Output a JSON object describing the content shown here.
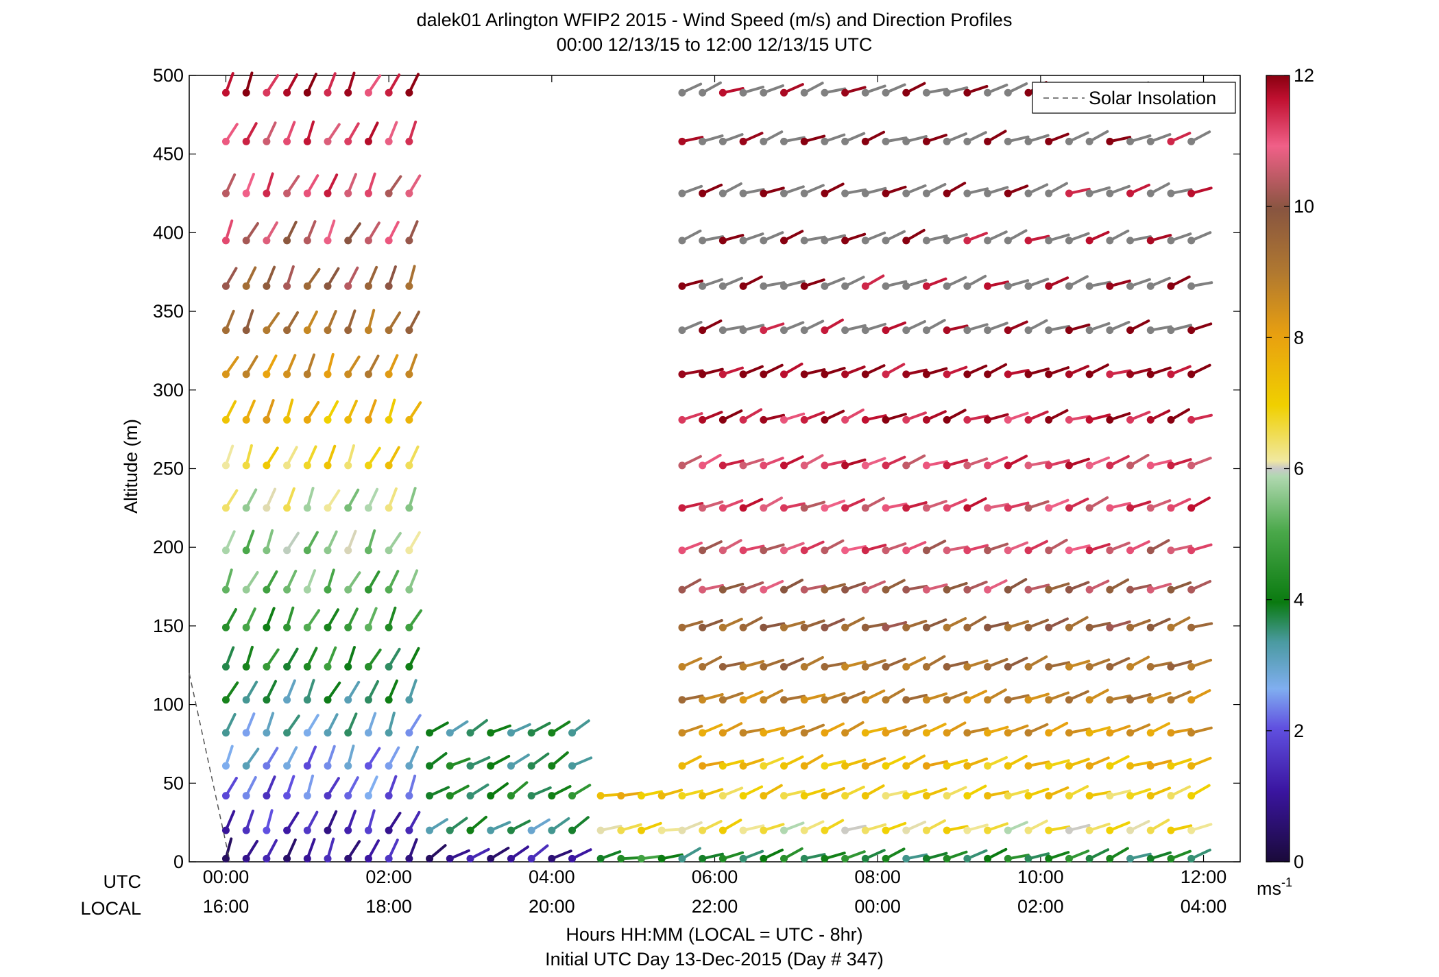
{
  "chart_data": {
    "type": "wind_barb_profile",
    "title": "dalek01 Arlington WFIP2 2015 - Wind Speed (m/s) and Direction Profiles",
    "subtitle": "00:00 12/13/15 to 12:00 12/13/15  UTC",
    "ylabel": "Altitude (m)",
    "ylim": [
      0,
      500
    ],
    "yticks": [
      0,
      50,
      100,
      150,
      200,
      250,
      300,
      350,
      400,
      450,
      500
    ],
    "xlim_hours": [
      -0.45,
      12.45
    ],
    "xticks_utc": [
      "00:00",
      "02:00",
      "04:00",
      "06:00",
      "08:00",
      "10:00",
      "12:00"
    ],
    "xticks_local": [
      "16:00",
      "18:00",
      "20:00",
      "22:00",
      "00:00",
      "02:00",
      "04:00"
    ],
    "xrow_labels": [
      "UTC",
      "LOCAL"
    ],
    "xlabel": "Hours HH:MM  (LOCAL = UTC - 8hr)",
    "xlabel2": "Initial UTC Day 13-Dec-2015 (Day # 347)",
    "legend": {
      "entries": [
        "Solar Insolation"
      ],
      "placement": "top-right"
    },
    "colorbar": {
      "min": 0,
      "max": 12,
      "ticks": [
        0,
        2,
        4,
        6,
        8,
        10,
        12
      ],
      "unit": "ms",
      "unit_exp": "-1"
    },
    "solar_insolation_line": [
      [
        -0.45,
        120
      ],
      [
        0.05,
        0
      ]
    ],
    "levels": [
      2,
      20,
      42,
      61,
      82,
      103,
      124,
      149,
      173,
      198,
      225,
      252,
      281,
      310,
      338,
      366,
      395,
      425,
      458,
      489
    ],
    "segments": [
      {
        "h0": 0.0,
        "h1": 2.4,
        "max_level": 500,
        "step": 0.25,
        "speeds": [
          1.0,
          1.4,
          2.0,
          2.5,
          3.0,
          3.6,
          4.2,
          4.7,
          5.2,
          5.6,
          6.0,
          6.8,
          7.6,
          8.4,
          9.2,
          9.8,
          10.5,
          10.9,
          11.2,
          11.6
        ],
        "dir": 205
      },
      {
        "h0": 2.5,
        "h1": 4.4,
        "max_level": 90,
        "step": 0.25,
        "speeds": [
          1.0,
          3.5,
          4.0,
          3.8,
          3.6
        ],
        "dir": 240
      },
      {
        "h0": 4.6,
        "h1": 5.4,
        "max_level": 50,
        "step": 0.25,
        "speeds": [
          4.5,
          6.5,
          7.5
        ],
        "dir": 260
      },
      {
        "h0": 5.6,
        "h1": 11.9,
        "max_level": 500,
        "step": 0.25,
        "speeds": [
          4.0,
          6.5,
          7.0,
          7.4,
          8.2,
          8.8,
          9.2,
          9.6,
          10.2,
          10.8,
          11.0,
          11.1,
          11.6,
          12.0,
          12.0,
          12.0,
          12.0,
          12.0,
          12.0,
          12.0
        ],
        "dir": 250
      }
    ]
  }
}
